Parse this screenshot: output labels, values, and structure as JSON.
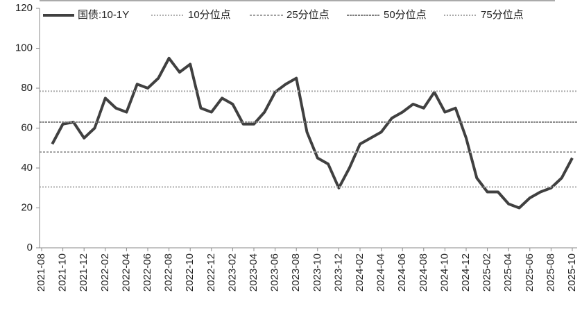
{
  "chart_data": {
    "type": "line",
    "x": [
      "2021-08",
      "2021-09",
      "2021-10",
      "2021-11",
      "2021-12",
      "2022-01",
      "2022-02",
      "2022-03",
      "2022-04",
      "2022-05",
      "2022-06",
      "2022-07",
      "2022-08",
      "2022-09",
      "2022-10",
      "2022-11",
      "2022-12",
      "2023-01",
      "2023-02",
      "2023-03",
      "2023-04",
      "2023-05",
      "2023-06",
      "2023-07",
      "2023-08",
      "2023-09",
      "2023-10",
      "2023-11",
      "2023-12",
      "2024-01",
      "2024-02",
      "2024-03",
      "2024-04",
      "2024-05",
      "2024-06",
      "2024-07",
      "2024-08",
      "2024-09",
      "2024-10",
      "2024-11",
      "2024-12",
      "2025-01",
      "2025-02",
      "2025-03",
      "2025-04",
      "2025-05",
      "2025-06",
      "2025-07",
      "2025-08",
      "2025-09",
      "2025-10"
    ],
    "xticks": [
      "2021-08",
      "2021-10",
      "2021-12",
      "2022-02",
      "2022-04",
      "2022-06",
      "2022-08",
      "2022-10",
      "2022-12",
      "2023-02",
      "2023-04",
      "2023-06",
      "2023-08",
      "2023-10",
      "2023-12",
      "2024-02",
      "2024-04",
      "2024-06",
      "2024-08",
      "2024-10",
      "2024-12",
      "2025-02",
      "2025-04",
      "2025-06",
      "2025-08",
      "2025-10"
    ],
    "series": [
      {
        "name": "国债:10-1Y",
        "color": "#404040",
        "values": [
          null,
          52,
          62,
          63,
          55,
          60,
          75,
          70,
          68,
          82,
          80,
          85,
          95,
          88,
          92,
          70,
          68,
          75,
          72,
          62,
          62,
          68,
          78,
          82,
          85,
          58,
          45,
          42,
          30,
          40,
          52,
          55,
          58,
          65,
          68,
          72,
          70,
          78,
          68,
          70,
          55,
          35,
          28,
          28,
          22,
          20,
          25,
          28,
          30,
          35,
          45
        ]
      },
      {
        "name": "10分位点",
        "color": "#b0b0b0",
        "value": 30.5
      },
      {
        "name": "25分位点",
        "color": "#a0a0a0",
        "value": 48
      },
      {
        "name": "50分位点",
        "color": "#808080",
        "value": 63
      },
      {
        "name": "75分位点",
        "color": "#a8a8a8",
        "value": 78.5
      }
    ],
    "ylim": [
      0,
      120
    ],
    "yticks": [
      0,
      20,
      40,
      60,
      80,
      100,
      120
    ]
  }
}
